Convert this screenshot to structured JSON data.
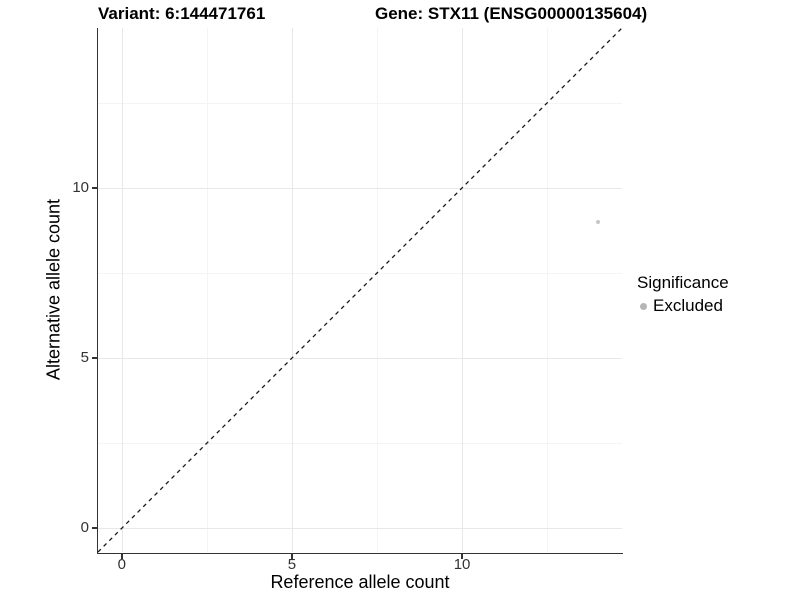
{
  "chart_data": {
    "type": "scatter",
    "title_left": "Variant: 6:144471761",
    "title_right": "Gene: STX11 (ENSG00000135604)",
    "xlabel": "Reference allele count",
    "ylabel": "Alternative allele count",
    "xlim": [
      0,
      14
    ],
    "ylim": [
      0,
      14
    ],
    "x_ticks": [
      0,
      5,
      10
    ],
    "y_ticks": [
      0,
      5,
      10
    ],
    "grid": "major and minor, light gray on white",
    "points": [
      {
        "x": 14,
        "y": 9,
        "series": "Excluded"
      }
    ],
    "identity_line": {
      "slope": 1,
      "intercept": 0,
      "style": "dashed",
      "color": "#1a1a1a"
    },
    "legend": {
      "title": "Significance",
      "position": "right",
      "entries": [
        {
          "label": "Excluded",
          "color": "#b5b5b5"
        }
      ]
    }
  },
  "colors": {
    "background": "#ffffff",
    "axis_line": "#333333",
    "tick_label": "#333333",
    "grid_major": "#e8e8e8",
    "grid_minor": "#f4f4f4",
    "point": "#c6c6c6",
    "legend_dot": "#b5b5b5"
  }
}
